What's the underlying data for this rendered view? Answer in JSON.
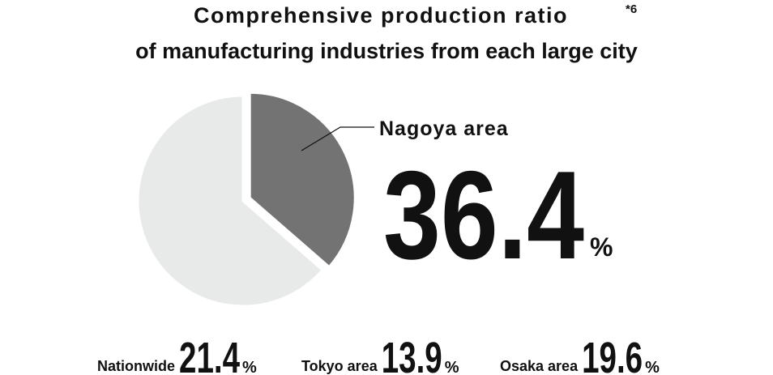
{
  "chart_data": {
    "type": "pie",
    "title": [
      "Comprehensive production ratio",
      "of manufacturing industries from each large city"
    ],
    "title_note": "*6",
    "categories": [
      "Nagoya area",
      null
    ],
    "values": [
      36.4,
      63.6
    ],
    "colors": [
      "#737373",
      "#e8e9e9"
    ],
    "unit": "%",
    "comparisons": [
      {
        "label": "Nationwide",
        "value": 21.4
      },
      {
        "label": "Tokyo area",
        "value": 13.9
      },
      {
        "label": "Osaka area",
        "value": 19.6
      }
    ]
  }
}
